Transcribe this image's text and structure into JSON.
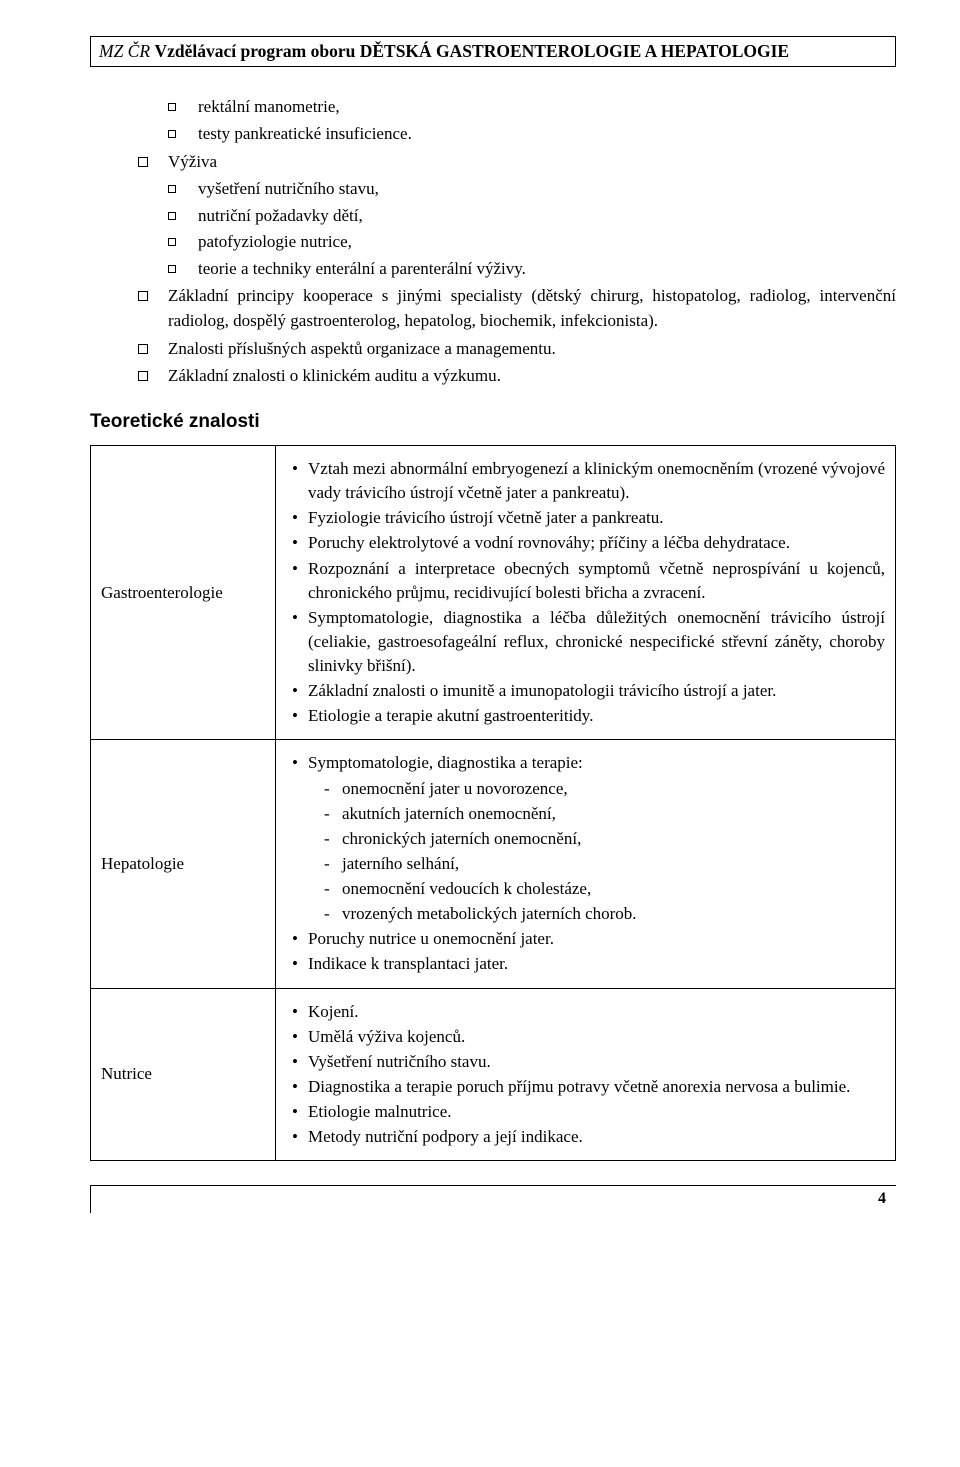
{
  "header": {
    "prefix_italic": "MZ ČR ",
    "title_bold": "Vzdělávací program oboru DĚTSKÁ GASTROENTEROLOGIE A HEPATOLOGIE"
  },
  "outline": {
    "sub_items_a": [
      "rektální manometrie,",
      "testy pankreatické insuficience."
    ],
    "vyziva_label": "Výživa",
    "vyziva_items": [
      "vyšetření nutričního stavu,",
      "nutriční požadavky dětí,",
      "patofyziologie nutrice,",
      "teorie a techniky enterální a parenterální výživy."
    ],
    "bullet_paras": [
      "Základní principy kooperace s jinými specialisty (dětský chirurg, histopatolog, radiolog, intervenční radiolog, dospělý gastroenterolog, hepatolog, biochemik, infekcionista).",
      "Znalosti příslušných aspektů organizace a managementu.",
      "Základní znalosti o klinickém auditu a výzkumu."
    ]
  },
  "section_heading": "Teoretické znalosti",
  "table": {
    "rows": [
      {
        "label": "Gastroenterologie",
        "bullets": [
          "Vztah mezi abnormální embryogenezí a klinickým onemocněním (vrozené vývojové vady trávicího ústrojí včetně jater a pankreatu).",
          "Fyziologie trávicího ústrojí včetně jater a pankreatu.",
          "Poruchy elektrolytové a vodní rovnováhy; příčiny a léčba dehydratace.",
          "Rozpoznání a interpretace obecných symptomů včetně neprospívání u kojenců, chronického průjmu, recidivující bolesti břicha a zvracení.",
          "Symptomatologie, diagnostika a léčba důležitých onemocnění trávicího ústrojí (celiakie, gastroesofageální reflux, chronické nespecifické střevní záněty, choroby slinivky břišní).",
          "Základní znalosti o imunitě a imunopatologii trávicího ústrojí a jater.",
          "Etiologie a terapie akutní gastroenteritidy."
        ]
      },
      {
        "label": "Hepatologie",
        "bullets_leading": "Symptomatologie, diagnostika a terapie:",
        "dashes": [
          "onemocnění jater u novorozence,",
          "akutních jaterních onemocnění,",
          "chronických jaterních onemocnění,",
          "jaterního selhání,",
          "onemocnění vedoucích k cholestáze,",
          "vrozených metabolických jaterních chorob."
        ],
        "bullets_trailing": [
          "Poruchy nutrice u onemocnění jater.",
          "Indikace k transplantaci jater."
        ]
      },
      {
        "label": "Nutrice",
        "bullets": [
          "Kojení.",
          "Umělá výživa kojenců.",
          "Vyšetření nutričního stavu.",
          "Diagnostika a terapie poruch příjmu potravy včetně anorexia nervosa a bulimie.",
          "Etiologie malnutrice.",
          "Metody nutriční podpory a její indikace."
        ]
      }
    ]
  },
  "page_number": "4"
}
